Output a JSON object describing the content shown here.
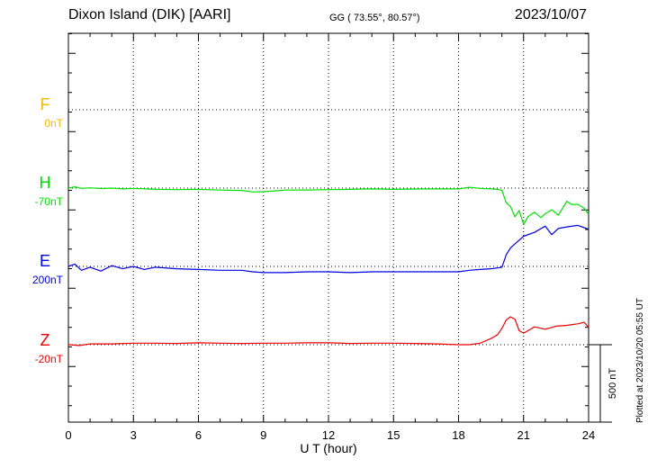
{
  "header": {
    "station": "Dixon Island (DIK)  [AARI]",
    "coords": "GG ( 73.55°,  80.57°)",
    "date": "2023/10/07"
  },
  "footer": {
    "plotted": "Plotted at 2023/10/20 05:55 UT"
  },
  "scale_label": "500 nT",
  "components": [
    {
      "key": "F",
      "label": "F",
      "baseline": "0nT",
      "color": "#f5b800"
    },
    {
      "key": "H",
      "label": "H",
      "baseline": "-70nT",
      "color": "#00e000"
    },
    {
      "key": "E",
      "label": "E",
      "baseline": "200nT",
      "color": "#0000dd"
    },
    {
      "key": "Z",
      "label": "Z",
      "baseline": "-20nT",
      "color": "#ee0000"
    }
  ],
  "chart_data": {
    "type": "line",
    "xlabel": "U T (hour)",
    "xlim": [
      0,
      24
    ],
    "xticks": [
      0,
      3,
      6,
      9,
      12,
      15,
      18,
      21,
      24
    ],
    "grid": true,
    "series": [
      {
        "name": "H",
        "baseline_nT": -70,
        "x": [
          0,
          0.3,
          0.6,
          1,
          1.5,
          2,
          2.5,
          3,
          4,
          5,
          6,
          7,
          8,
          8.5,
          9,
          9.5,
          10,
          11,
          12,
          13,
          14,
          15,
          16,
          17,
          18,
          18.5,
          19,
          19.5,
          19.8,
          20,
          20.2,
          20.4,
          20.6,
          20.8,
          21,
          21.2,
          21.5,
          21.8,
          22,
          22.3,
          22.6,
          23,
          23.2,
          23.5,
          23.8,
          24
        ],
        "y": [
          -70,
          -62,
          -72,
          -68,
          -73,
          -70,
          -75,
          -72,
          -78,
          -80,
          -78,
          -83,
          -85,
          -95,
          -93,
          -88,
          -83,
          -82,
          -80,
          -78,
          -75,
          -78,
          -76,
          -75,
          -75,
          -65,
          -72,
          -75,
          -78,
          -85,
          -165,
          -190,
          -255,
          -215,
          -305,
          -255,
          -225,
          -260,
          -235,
          -210,
          -245,
          -155,
          -175,
          -175,
          -200,
          -240
        ]
      },
      {
        "name": "E",
        "baseline_nT": 200,
        "x": [
          0,
          0.3,
          0.6,
          1,
          1.5,
          2,
          2.5,
          3,
          3.5,
          4,
          5,
          6,
          7,
          8,
          8.5,
          9,
          10,
          11,
          12,
          13,
          14,
          15,
          16,
          17,
          18,
          18.5,
          19,
          19.5,
          19.8,
          20,
          20.2,
          20.4,
          20.6,
          20.8,
          21,
          21.5,
          22,
          22.3,
          22.6,
          23,
          23.5,
          23.8,
          24
        ],
        "y": [
          200,
          215,
          175,
          195,
          170,
          205,
          185,
          200,
          180,
          195,
          185,
          180,
          175,
          175,
          165,
          160,
          160,
          165,
          165,
          160,
          165,
          165,
          165,
          165,
          165,
          175,
          180,
          185,
          190,
          195,
          275,
          320,
          345,
          370,
          395,
          420,
          460,
          405,
          445,
          455,
          465,
          450,
          440
        ]
      },
      {
        "name": "Z",
        "baseline_nT": -20,
        "x": [
          0,
          0.5,
          1,
          2,
          3,
          4,
          5,
          6,
          7,
          8,
          9,
          10,
          11,
          12,
          13,
          14,
          15,
          16,
          17,
          18,
          18.5,
          19,
          19.5,
          19.8,
          20,
          20.2,
          20.4,
          20.6,
          20.8,
          21,
          21.2,
          21.5,
          22,
          22.5,
          23,
          23.5,
          23.8,
          24
        ],
        "y": [
          -20,
          -25,
          -15,
          -15,
          -10,
          -10,
          -12,
          -8,
          -10,
          -12,
          -10,
          -10,
          -8,
          -8,
          -12,
          -10,
          -10,
          -12,
          -15,
          -20,
          -20,
          -10,
          20,
          45,
          85,
          140,
          160,
          145,
          70,
          55,
          70,
          95,
          80,
          100,
          105,
          115,
          125,
          90
        ]
      }
    ]
  }
}
